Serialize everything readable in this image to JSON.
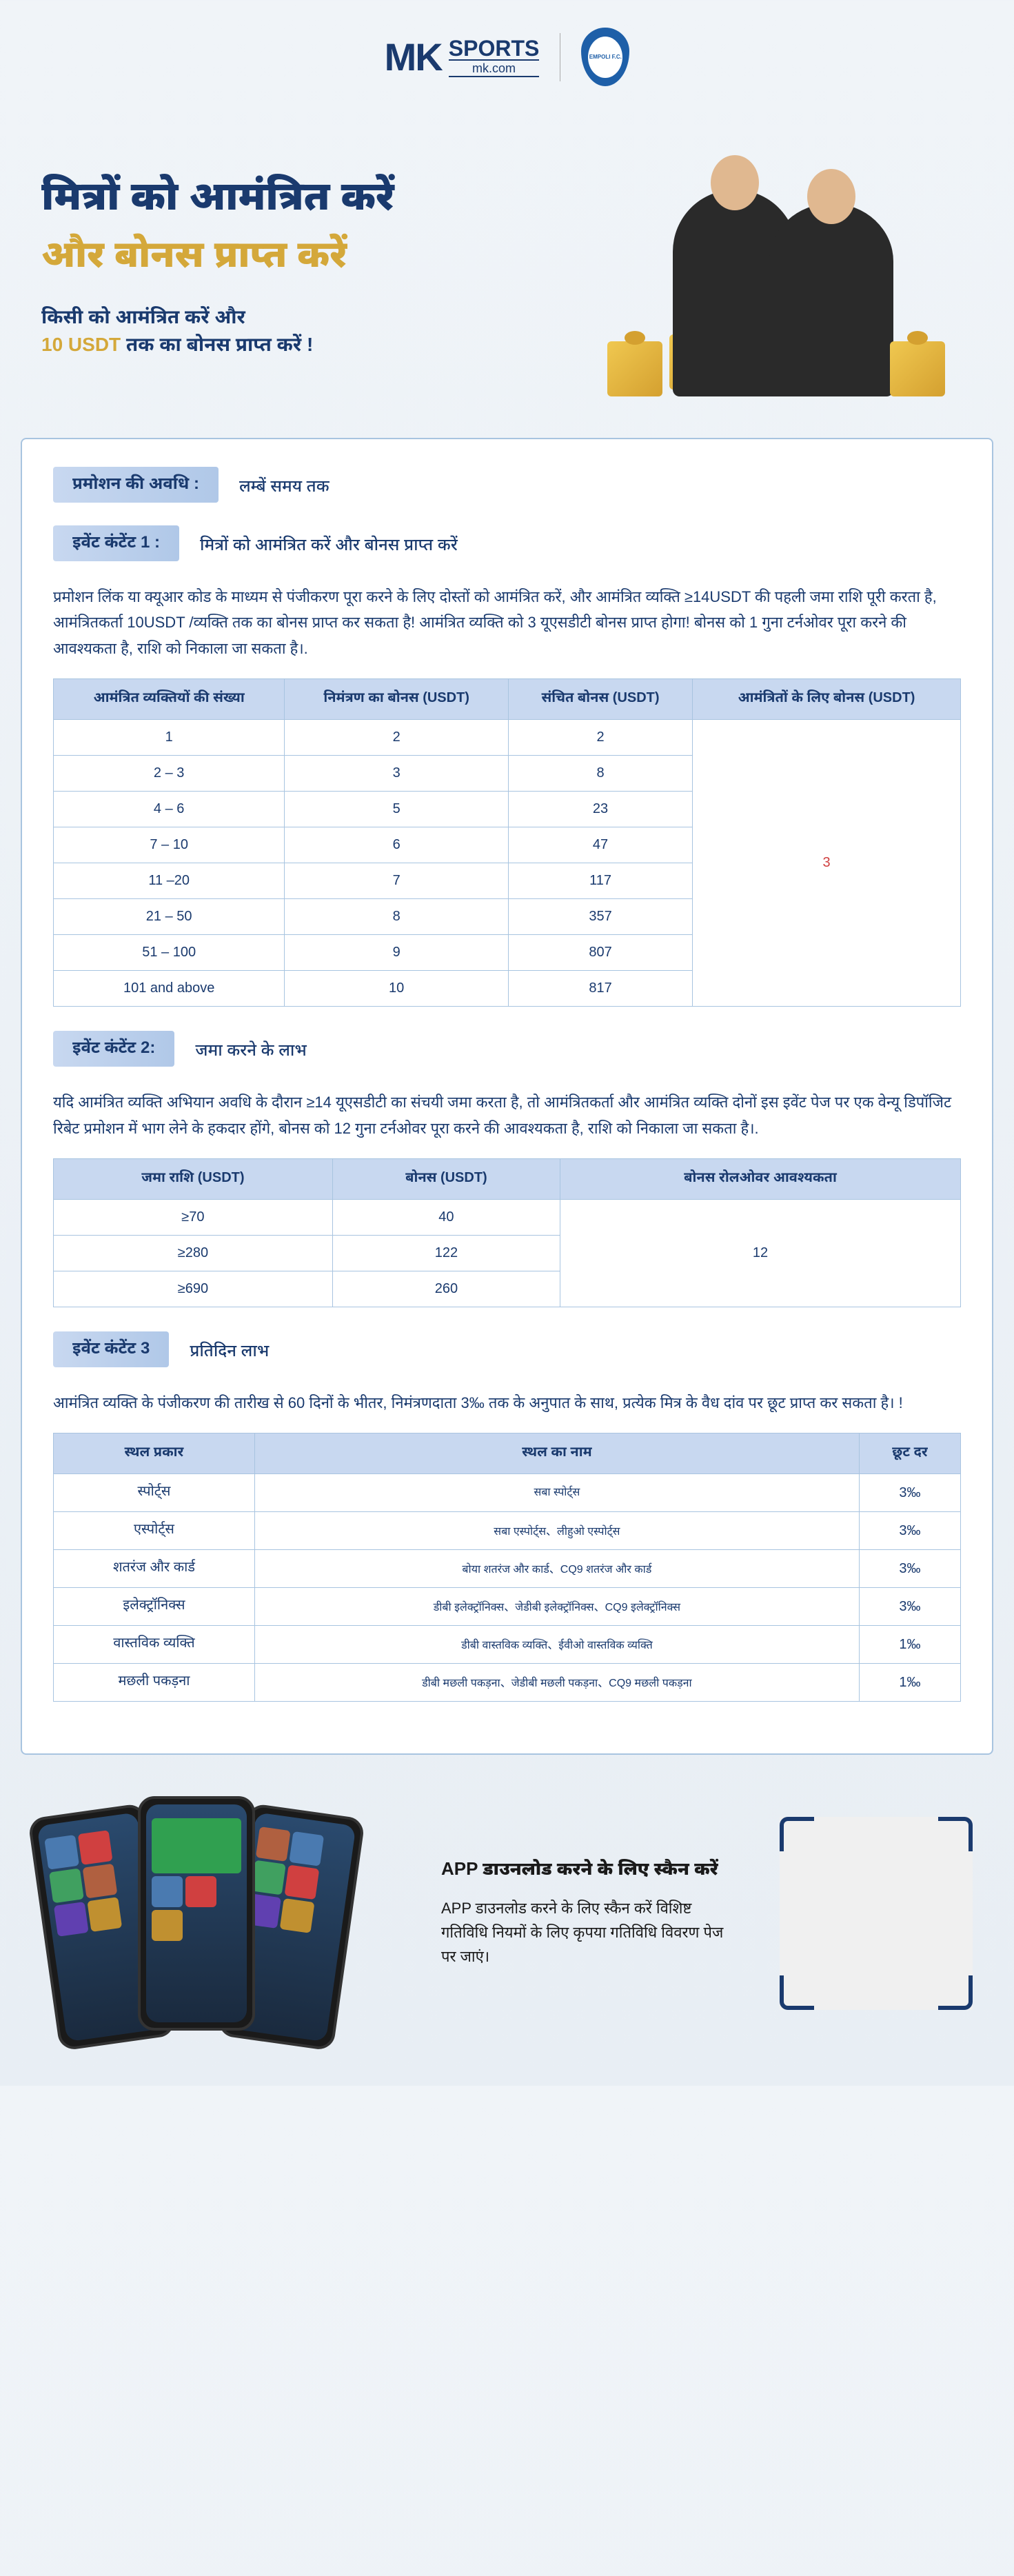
{
  "header": {
    "logo_mk": "MK",
    "logo_sports": "SPORTS",
    "logo_domain": "mk.com",
    "empoli": "EMPOLI F.C."
  },
  "hero": {
    "title1": "मित्रों को आमंत्रित करें",
    "title2": "और बोनस प्राप्त करें",
    "sub1": "किसी को आमंत्रित करें और",
    "sub2_amount": "10 USDT",
    "sub2_rest": " तक का बोनस प्राप्त करें !"
  },
  "promo_period": {
    "label": "प्रमोशन की अवधि :",
    "value": "लम्बें समय तक"
  },
  "event1": {
    "label": "इवेंट कंटेंट 1 :",
    "value": "मित्रों को आमंत्रित करें और बोनस प्राप्त करें",
    "desc": "प्रमोशन लिंक या क्यूआर कोड के माध्यम से पंजीकरण पूरा करने के लिए दोस्तों को आमंत्रित करें, और आमंत्रित व्यक्ति ≥14USDT की पहली जमा राशि पूरी करता है, आमंत्रितकर्ता 10USDT /व्यक्ति तक का बोनस प्राप्त कर सकता है! आमंत्रित व्यक्ति को 3 यूएसडीटी बोनस प्राप्त होगा! बोनस को 1 गुना टर्नओवर पूरा करने की आवश्यकता है, राशि को निकाला जा सकता है।.",
    "headers": [
      "आमंत्रित व्यक्तियों की संख्या",
      "निमंत्रण का बोनस  (USDT)",
      "संचित बोनस  (USDT)",
      "आमंत्रितों के लिए बोनस  (USDT)"
    ],
    "rows": [
      [
        "1",
        "2",
        "2"
      ],
      [
        "2 – 3",
        "3",
        "8"
      ],
      [
        "4 – 6",
        "5",
        "23"
      ],
      [
        "7 – 10",
        "6",
        "47"
      ],
      [
        "11 –20",
        "7",
        "117"
      ],
      [
        "21 – 50",
        "8",
        "357"
      ],
      [
        "51 – 100",
        "9",
        "807"
      ],
      [
        "101 and above",
        "10",
        "817"
      ]
    ],
    "merged_bonus": "3"
  },
  "event2": {
    "label": "इवेंट कंटेंट 2:",
    "value": "जमा करने के लाभ",
    "desc": "यदि आमंत्रित व्यक्ति अभियान अवधि के दौरान ≥14 यूएसडीटी का संचयी जमा करता है, तो आमंत्रितकर्ता और आमंत्रित व्यक्ति दोनों इस इवेंट पेज पर एक वेन्यू डिपॉजिट रिबेट प्रमोशन में भाग लेने के हकदार होंगे, बोनस को 12 गुना टर्नओवर पूरा करने की आवश्यकता है, राशि को निकाला जा सकता है।.",
    "headers": [
      "जमा राशि  (USDT)",
      "बोनस  (USDT)",
      "बोनस रोलओवर आवश्यकता"
    ],
    "rows": [
      [
        "≥70",
        "40"
      ],
      [
        "≥280",
        "122"
      ],
      [
        "≥690",
        "260"
      ]
    ],
    "merged_rollover": "12"
  },
  "event3": {
    "label": "इवेंट कंटेंट 3",
    "value": "प्रतिदिन लाभ",
    "desc": "आमंत्रित व्यक्ति के पंजीकरण की तारीख से 60 दिनों के भीतर, निमंत्रणदाता 3‰ तक के अनुपात के साथ, प्रत्येक मित्र के वैध दांव पर छूट प्राप्त कर सकता है। !",
    "headers": [
      "स्थल प्रकार",
      "स्थल का नाम",
      "छूट दर"
    ],
    "rows": [
      [
        "स्पोर्ट्स",
        "सबा स्पोर्ट्स",
        "3‰"
      ],
      [
        "एस्पोर्ट्स",
        "सबा एस्पोर्ट्स、लीहुओ एस्पोर्ट्स",
        "3‰"
      ],
      [
        "शतरंज और कार्ड",
        "बोया शतरंज और कार्ड、CQ9 शतरंज और कार्ड",
        "3‰"
      ],
      [
        "इलेक्ट्रॉनिक्स",
        "डीबी इलेक्ट्रॉनिक्स、जेडीबी इलेक्ट्रॉनिक्स、CQ9 इलेक्ट्रॉनिक्स",
        "3‰"
      ],
      [
        "वास्तविक व्यक्ति",
        "डीबी वास्तविक व्यक्ति、ईवीओ वास्तविक व्यक्ति",
        "1‰"
      ],
      [
        "मछली पकड़ना",
        "डीबी मछली पकड़ना、जेडीबी मछली पकड़ना、CQ9 मछली पकड़ना",
        "1‰"
      ]
    ]
  },
  "app": {
    "title": "APP  डाउनलोड करने के लिए स्कैन करें",
    "desc": "APP  डाउनलोड करने के लिए स्कैन करें विशिष्ट गतिविधि नियमों के लिए कृपया गतिविधि विवरण पेज पर जाएं।"
  },
  "colors": {
    "primary": "#1a3a6e",
    "gold": "#d4a83a",
    "table_header": "#c8d8f0",
    "border": "#a8c4e0",
    "red": "#d04040"
  }
}
